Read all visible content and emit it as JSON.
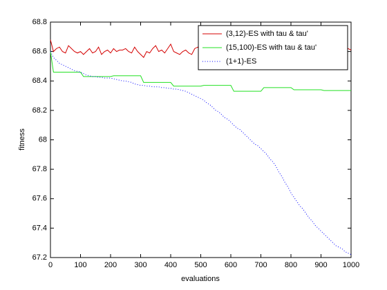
{
  "chart_data": {
    "type": "line",
    "xlabel": "evaluations",
    "ylabel": "fitness",
    "x": [
      0,
      10,
      20,
      30,
      40,
      50,
      60,
      70,
      80,
      90,
      100,
      110,
      120,
      130,
      140,
      150,
      160,
      170,
      180,
      190,
      200,
      210,
      220,
      230,
      240,
      250,
      260,
      270,
      280,
      290,
      300,
      310,
      320,
      330,
      340,
      350,
      360,
      370,
      380,
      390,
      400,
      410,
      420,
      430,
      440,
      450,
      460,
      470,
      480,
      490,
      500,
      510,
      520,
      530,
      540,
      550,
      560,
      570,
      580,
      590,
      600,
      610,
      620,
      630,
      640,
      650,
      660,
      670,
      680,
      690,
      700,
      710,
      720,
      730,
      740,
      750,
      760,
      770,
      780,
      790,
      800,
      810,
      820,
      830,
      840,
      850,
      860,
      870,
      880,
      890,
      900,
      910,
      920,
      930,
      940,
      950,
      960,
      970,
      980,
      990,
      1000
    ],
    "series": [
      {
        "name": "(3,12)-ES with tau & tau'",
        "color": "#d40000",
        "linestyle": "solid",
        "values": [
          68.68,
          68.6,
          68.62,
          68.63,
          68.6,
          68.59,
          68.64,
          68.62,
          68.6,
          68.59,
          68.6,
          68.58,
          68.6,
          68.62,
          68.59,
          68.6,
          68.63,
          68.58,
          68.6,
          68.61,
          68.59,
          68.62,
          68.6,
          68.61,
          68.61,
          68.62,
          68.6,
          68.59,
          68.63,
          68.6,
          68.58,
          68.56,
          68.6,
          68.59,
          68.62,
          68.64,
          68.6,
          68.61,
          68.59,
          68.62,
          68.65,
          68.6,
          68.59,
          68.58,
          68.6,
          68.61,
          68.59,
          68.58,
          68.62,
          68.63,
          68.6,
          68.61,
          68.59,
          68.62,
          68.6,
          68.61,
          68.63,
          68.6,
          68.59,
          68.61,
          68.6,
          68.62,
          68.6,
          68.59,
          68.61,
          68.6,
          68.62,
          68.6,
          68.61,
          68.59,
          68.62,
          68.6,
          68.61,
          68.6,
          68.62,
          68.59,
          68.61,
          68.6,
          68.6,
          68.62,
          68.61,
          68.6,
          68.59,
          68.61,
          68.6,
          68.62,
          68.6,
          68.61,
          68.6,
          68.59,
          68.61,
          68.6,
          68.62,
          68.6,
          68.61,
          68.6,
          68.59,
          68.61,
          68.6,
          68.62,
          68.61
        ]
      },
      {
        "name": "(15,100)-ES with tau & tau'",
        "color": "#22e022",
        "linestyle": "solid",
        "values": [
          68.6,
          68.46,
          68.46,
          68.46,
          68.46,
          68.46,
          68.46,
          68.46,
          68.46,
          68.46,
          68.46,
          68.43,
          68.43,
          68.43,
          68.43,
          68.43,
          68.43,
          68.43,
          68.43,
          68.43,
          68.43,
          68.435,
          68.435,
          68.435,
          68.435,
          68.435,
          68.435,
          68.435,
          68.435,
          68.435,
          68.435,
          68.39,
          68.39,
          68.39,
          68.39,
          68.39,
          68.39,
          68.39,
          68.39,
          68.39,
          68.39,
          68.365,
          68.365,
          68.365,
          68.365,
          68.365,
          68.365,
          68.365,
          68.365,
          68.365,
          68.365,
          68.37,
          68.37,
          68.37,
          68.37,
          68.37,
          68.37,
          68.37,
          68.37,
          68.37,
          68.37,
          68.33,
          68.33,
          68.33,
          68.33,
          68.33,
          68.33,
          68.33,
          68.33,
          68.33,
          68.33,
          68.355,
          68.355,
          68.355,
          68.355,
          68.355,
          68.355,
          68.355,
          68.355,
          68.355,
          68.355,
          68.34,
          68.34,
          68.34,
          68.34,
          68.34,
          68.34,
          68.34,
          68.34,
          68.34,
          68.34,
          68.335,
          68.335,
          68.335,
          68.335,
          68.335,
          68.335,
          68.335,
          68.335,
          68.335,
          68.335
        ]
      },
      {
        "name": "(1+1)-ES",
        "color": "#0000ff",
        "linestyle": "dotted",
        "values": [
          68.6,
          68.56,
          68.54,
          68.52,
          68.51,
          68.5,
          68.49,
          68.48,
          68.47,
          68.465,
          68.46,
          68.45,
          68.44,
          68.435,
          68.43,
          68.43,
          68.425,
          68.425,
          68.42,
          68.42,
          68.42,
          68.415,
          68.41,
          68.405,
          68.4,
          68.4,
          68.395,
          68.39,
          68.38,
          68.375,
          68.37,
          68.37,
          68.365,
          68.365,
          68.36,
          68.36,
          68.36,
          68.355,
          68.355,
          68.35,
          68.35,
          68.345,
          68.345,
          68.34,
          68.335,
          68.33,
          68.32,
          68.31,
          68.3,
          68.29,
          68.28,
          68.27,
          68.25,
          68.24,
          68.22,
          68.2,
          68.19,
          68.17,
          68.15,
          68.14,
          68.12,
          68.1,
          68.08,
          68.07,
          68.05,
          68.03,
          68.01,
          67.99,
          67.97,
          67.96,
          67.94,
          67.92,
          67.9,
          67.87,
          67.85,
          67.82,
          67.78,
          67.75,
          67.71,
          67.68,
          67.64,
          67.61,
          67.58,
          67.55,
          67.53,
          67.5,
          67.47,
          67.45,
          67.42,
          67.4,
          67.38,
          67.36,
          67.34,
          67.32,
          67.3,
          67.28,
          67.27,
          67.26,
          67.24,
          67.23,
          67.22
        ]
      }
    ],
    "xlim": [
      0,
      1000
    ],
    "xticks": [
      0,
      100,
      200,
      300,
      400,
      500,
      600,
      700,
      800,
      900,
      1000
    ],
    "ylim": [
      67.2,
      68.8
    ],
    "yticks": [
      67.2,
      67.4,
      67.6,
      67.8,
      68,
      68.2,
      68.4,
      68.6,
      68.8
    ],
    "grid": false,
    "legend": "northeast"
  }
}
